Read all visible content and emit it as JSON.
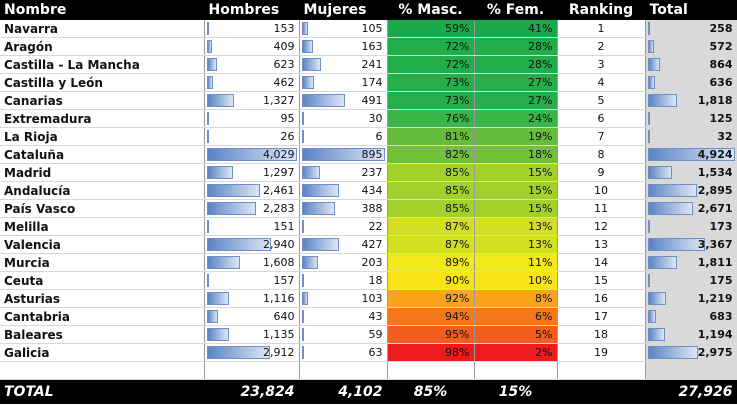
{
  "header": {
    "name": "Nombre",
    "men": "Hombres",
    "women": "Mujeres",
    "pct_male": "% Masc.",
    "pct_female": "% Fem.",
    "ranking": "Ranking",
    "total": "Total"
  },
  "rows": [
    {
      "name": "Navarra",
      "men": "153",
      "women": "105",
      "pm": "59%",
      "pf": "41%",
      "rank": "1",
      "total": "258",
      "men_ratio": 0.04,
      "women_ratio": 0.12,
      "total_ratio": 0.05,
      "color": "#1aa84a"
    },
    {
      "name": "Aragón",
      "men": "409",
      "women": "163",
      "pm": "72%",
      "pf": "28%",
      "rank": "2",
      "total": "572",
      "men_ratio": 0.1,
      "women_ratio": 0.18,
      "total_ratio": 0.12,
      "color": "#22ad4b"
    },
    {
      "name": "Castilla - La Mancha",
      "men": "623",
      "women": "241",
      "pm": "72%",
      "pf": "28%",
      "rank": "3",
      "total": "864",
      "men_ratio": 0.15,
      "women_ratio": 0.27,
      "total_ratio": 0.18,
      "color": "#22ad4b"
    },
    {
      "name": "Castilla y León",
      "men": "462",
      "women": "174",
      "pm": "73%",
      "pf": "27%",
      "rank": "4",
      "total": "636",
      "men_ratio": 0.11,
      "women_ratio": 0.19,
      "total_ratio": 0.13,
      "color": "#25af4b"
    },
    {
      "name": "Canarias",
      "men": "1,327",
      "women": "491",
      "pm": "73%",
      "pf": "27%",
      "rank": "5",
      "total": "1,818",
      "men_ratio": 0.33,
      "women_ratio": 0.55,
      "total_ratio": 0.37,
      "color": "#25af4b"
    },
    {
      "name": "Extremadura",
      "men": "95",
      "women": "30",
      "pm": "76%",
      "pf": "24%",
      "rank": "6",
      "total": "125",
      "men_ratio": 0.02,
      "women_ratio": 0.03,
      "total_ratio": 0.03,
      "color": "#3ab54a"
    },
    {
      "name": "La Rioja",
      "men": "26",
      "women": "6",
      "pm": "81%",
      "pf": "19%",
      "rank": "7",
      "total": "32",
      "men_ratio": 0.01,
      "women_ratio": 0.01,
      "total_ratio": 0.01,
      "color": "#66bd3c"
    },
    {
      "name": "Cataluña",
      "men": "4,029",
      "women": "895",
      "pm": "82%",
      "pf": "18%",
      "rank": "8",
      "total": "4,924",
      "men_ratio": 1.0,
      "women_ratio": 1.0,
      "total_ratio": 1.0,
      "color": "#73c13a"
    },
    {
      "name": "Madrid",
      "men": "1,297",
      "women": "237",
      "pm": "85%",
      "pf": "15%",
      "rank": "9",
      "total": "1,534",
      "men_ratio": 0.32,
      "women_ratio": 0.26,
      "total_ratio": 0.31,
      "color": "#a3d12c"
    },
    {
      "name": "Andalucía",
      "men": "2,461",
      "women": "434",
      "pm": "85%",
      "pf": "15%",
      "rank": "10",
      "total": "2,895",
      "men_ratio": 0.61,
      "women_ratio": 0.48,
      "total_ratio": 0.59,
      "color": "#a3d12c"
    },
    {
      "name": "País Vasco",
      "men": "2,283",
      "women": "388",
      "pm": "85%",
      "pf": "15%",
      "rank": "11",
      "total": "2,671",
      "men_ratio": 0.57,
      "women_ratio": 0.43,
      "total_ratio": 0.54,
      "color": "#a3d12c"
    },
    {
      "name": "Melilla",
      "men": "151",
      "women": "22",
      "pm": "87%",
      "pf": "13%",
      "rank": "12",
      "total": "173",
      "men_ratio": 0.04,
      "women_ratio": 0.02,
      "total_ratio": 0.04,
      "color": "#d2e021"
    },
    {
      "name": "Valencia",
      "men": "2,940",
      "women": "427",
      "pm": "87%",
      "pf": "13%",
      "rank": "13",
      "total": "3,367",
      "men_ratio": 0.73,
      "women_ratio": 0.48,
      "total_ratio": 0.68,
      "color": "#d2e021"
    },
    {
      "name": "Murcia",
      "men": "1,608",
      "women": "203",
      "pm": "89%",
      "pf": "11%",
      "rank": "14",
      "total": "1,811",
      "men_ratio": 0.4,
      "women_ratio": 0.23,
      "total_ratio": 0.37,
      "color": "#f2e81a"
    },
    {
      "name": "Ceuta",
      "men": "157",
      "women": "18",
      "pm": "90%",
      "pf": "10%",
      "rank": "15",
      "total": "175",
      "men_ratio": 0.04,
      "women_ratio": 0.02,
      "total_ratio": 0.04,
      "color": "#f8e316"
    },
    {
      "name": "Asturias",
      "men": "1,116",
      "women": "103",
      "pm": "92%",
      "pf": "8%",
      "rank": "16",
      "total": "1,219",
      "men_ratio": 0.28,
      "women_ratio": 0.12,
      "total_ratio": 0.25,
      "color": "#f9a41a"
    },
    {
      "name": "Cantabria",
      "men": "640",
      "women": "43",
      "pm": "94%",
      "pf": "6%",
      "rank": "17",
      "total": "683",
      "men_ratio": 0.16,
      "women_ratio": 0.05,
      "total_ratio": 0.14,
      "color": "#f7781c"
    },
    {
      "name": "Baleares",
      "men": "1,135",
      "women": "59",
      "pm": "95%",
      "pf": "5%",
      "rank": "18",
      "total": "1,194",
      "men_ratio": 0.28,
      "women_ratio": 0.07,
      "total_ratio": 0.24,
      "color": "#f35d1d"
    },
    {
      "name": "Galicia",
      "men": "2,912",
      "women": "63",
      "pm": "98%",
      "pf": "2%",
      "rank": "19",
      "total": "2,975",
      "men_ratio": 0.72,
      "women_ratio": 0.07,
      "total_ratio": 0.6,
      "color": "#ec1c1c"
    }
  ],
  "footer": {
    "label": "TOTAL",
    "men": "23,824",
    "women": "4,102",
    "pm": "85%",
    "pf": "15%",
    "total": "27,926"
  },
  "colors": {
    "header_bg": "#000000",
    "bar_start": "#5b84c4",
    "total_bg": "#d9d9d9"
  }
}
